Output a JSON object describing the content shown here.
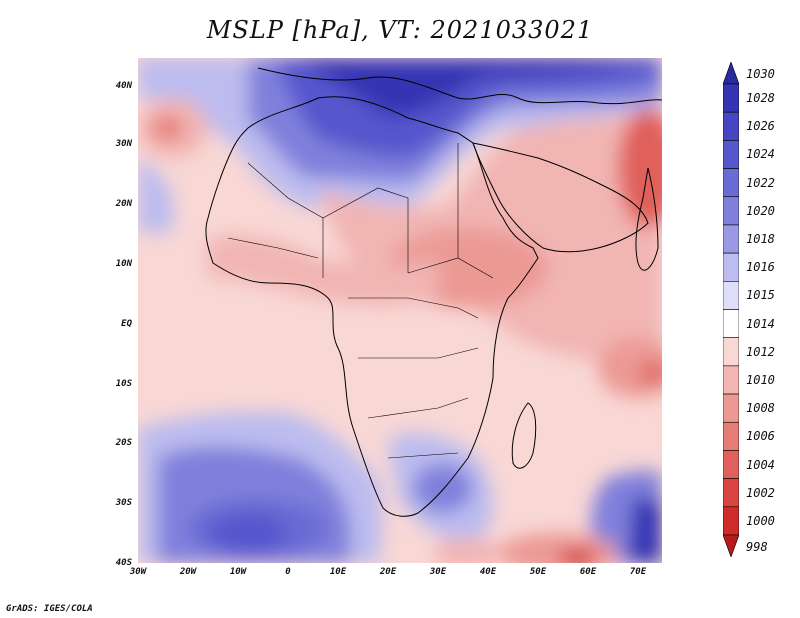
{
  "title": "MSLP [hPa], VT: 2021033021",
  "credit": "GrADS: IGES/COLA",
  "map": {
    "variable": "Mean sea level pressure",
    "units": "hPa",
    "valid_time": "2021033021",
    "region_lon": [
      -30,
      75
    ],
    "region_lat": [
      -40,
      45
    ],
    "lat_ticks": [
      {
        "label": "40N",
        "value": 40
      },
      {
        "label": "30N",
        "value": 30
      },
      {
        "label": "20N",
        "value": 20
      },
      {
        "label": "10N",
        "value": 10
      },
      {
        "label": "EQ",
        "value": 0
      },
      {
        "label": "10S",
        "value": -10
      },
      {
        "label": "20S",
        "value": -20
      },
      {
        "label": "30S",
        "value": -30
      },
      {
        "label": "40S",
        "value": -40
      }
    ],
    "lon_ticks": [
      {
        "label": "30W",
        "value": -30
      },
      {
        "label": "20W",
        "value": -20
      },
      {
        "label": "10W",
        "value": -10
      },
      {
        "label": "0",
        "value": 0
      },
      {
        "label": "10E",
        "value": 10
      },
      {
        "label": "20E",
        "value": 20
      },
      {
        "label": "30E",
        "value": 30
      },
      {
        "label": "40E",
        "value": 40
      },
      {
        "label": "50E",
        "value": 50
      },
      {
        "label": "60E",
        "value": 60
      },
      {
        "label": "70E",
        "value": 70
      }
    ]
  },
  "colorbar": {
    "levels": [
      "1030",
      "1028",
      "1026",
      "1024",
      "1022",
      "1020",
      "1018",
      "1016",
      "1015",
      "1014",
      "1012",
      "1010",
      "1008",
      "1006",
      "1004",
      "1002",
      "1000",
      "998"
    ],
    "colors": [
      "#2a2a9e",
      "#3535b4",
      "#4646c3",
      "#5757cd",
      "#6b6bd5",
      "#8080dc",
      "#9a9ae4",
      "#bcbcef",
      "#dedef8",
      "#ffffff",
      "#f8d7d5",
      "#f1b5b2",
      "#ec9994",
      "#e67c77",
      "#e0605c",
      "#d94542",
      "#cf2b2b",
      "#b81a1a"
    ]
  }
}
